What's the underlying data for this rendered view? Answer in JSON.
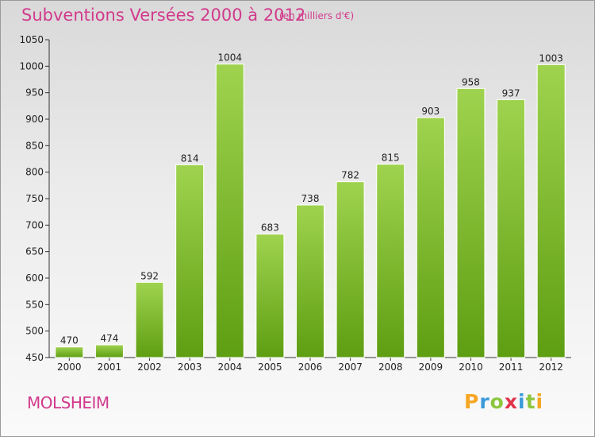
{
  "header": {
    "title": "Subventions Versées 2000 à 2012",
    "subtitle": "(en milliers d'€)"
  },
  "footer": {
    "city": "MOLSHEIM",
    "logo_letters": [
      "P",
      "r",
      "o",
      "x",
      "i",
      "t",
      "i"
    ],
    "logo_colors": [
      "#f5a623",
      "#3a9ad9",
      "#8cc63f",
      "#e2334b",
      "#3a9ad9",
      "#8cc63f",
      "#f5a623"
    ]
  },
  "colors": {
    "bar_top": "#9fd34f",
    "bar_bottom": "#5e9e12",
    "axis": "#333333",
    "grid": "#ffffff"
  },
  "chart_data": {
    "type": "bar",
    "categories": [
      "2000",
      "2001",
      "2002",
      "2003",
      "2004",
      "2005",
      "2006",
      "2007",
      "2008",
      "2009",
      "2010",
      "2011",
      "2012"
    ],
    "values": [
      470,
      474,
      592,
      814,
      1004,
      683,
      738,
      782,
      815,
      903,
      958,
      937,
      1003
    ],
    "ylim": [
      450,
      1050
    ],
    "yticks": [
      450,
      500,
      550,
      600,
      650,
      700,
      750,
      800,
      850,
      900,
      950,
      1000,
      1050
    ],
    "grid": false
  }
}
